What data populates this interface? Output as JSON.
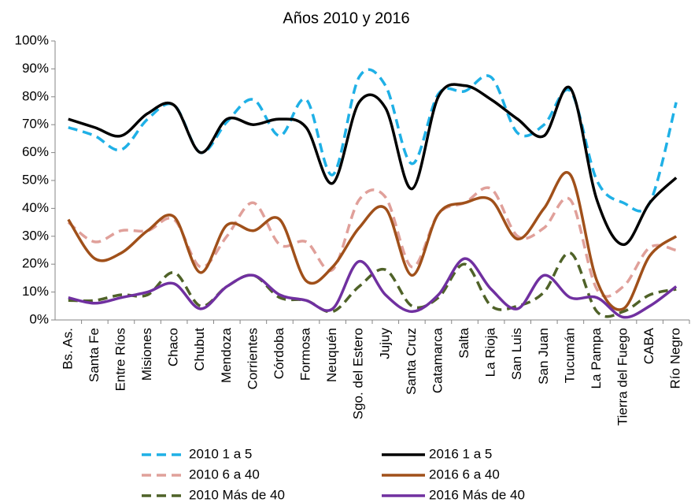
{
  "chart_data": {
    "type": "line",
    "title": "Años 2010 y 2016",
    "categories": [
      "Bs. As.",
      "Santa Fe",
      "Entre Ríos",
      "Misiones",
      "Chaco",
      "Chubut",
      "Mendoza",
      "Corrientes",
      "Córdoba",
      "Formosa",
      "Neuquén",
      "Sgo. del Estero",
      "Jujuy",
      "Santa Cruz",
      "Catamarca",
      "Salta",
      "La Rioja",
      "San Luis",
      "San Juan",
      "Tucumán",
      "La Pampa",
      "Tierra del Fuego",
      "CABA",
      "Río Negro"
    ],
    "series": [
      {
        "name": "2010 1 a 5",
        "color": "#1fb0e6",
        "style": "dashed",
        "values": [
          69,
          66,
          61,
          72,
          77,
          60,
          71,
          79,
          66,
          79,
          52,
          87,
          84,
          56,
          81,
          82,
          87,
          67,
          70,
          82,
          50,
          42,
          42,
          78
        ]
      },
      {
        "name": "2016 1 a 5",
        "color": "#000000",
        "style": "solid",
        "values": [
          72,
          69,
          66,
          74,
          77,
          60,
          72,
          70,
          72,
          69,
          49,
          78,
          76,
          47,
          80,
          84,
          79,
          72,
          66,
          83,
          43,
          27,
          42,
          51
        ]
      },
      {
        "name": "2010 6 a 40",
        "color": "#e0a09a",
        "style": "dashed",
        "values": [
          35,
          28,
          32,
          32,
          36,
          19,
          30,
          42,
          27,
          28,
          18,
          43,
          44,
          19,
          38,
          42,
          47,
          30,
          33,
          43,
          11,
          12,
          26,
          25
        ]
      },
      {
        "name": "2016 6 a 40",
        "color": "#a0501a",
        "style": "solid",
        "values": [
          36,
          22,
          24,
          32,
          37,
          17,
          34,
          32,
          36,
          14,
          19,
          33,
          40,
          16,
          38,
          42,
          43,
          29,
          40,
          52,
          14,
          4,
          23,
          30
        ]
      },
      {
        "name": "2010 Más de 40",
        "color": "#4f6228",
        "style": "dashed",
        "values": [
          7,
          7,
          9,
          9,
          17,
          5,
          12,
          16,
          8,
          7,
          3,
          12,
          18,
          5,
          8,
          20,
          5,
          5,
          10,
          24,
          3,
          3,
          9,
          11
        ]
      },
      {
        "name": "2016 Más de 40",
        "color": "#7030a0",
        "style": "solid",
        "values": [
          8,
          6,
          8,
          10,
          13,
          4,
          12,
          16,
          9,
          7,
          4,
          21,
          9,
          3,
          9,
          22,
          11,
          4,
          16,
          8,
          8,
          1,
          5,
          12
        ]
      }
    ],
    "ylim": [
      0,
      100
    ],
    "yticks": [
      {
        "value": 0,
        "label": "0%"
      },
      {
        "value": 10,
        "label": "10%"
      },
      {
        "value": 20,
        "label": "20%"
      },
      {
        "value": 30,
        "label": "30%"
      },
      {
        "value": 40,
        "label": "40%"
      },
      {
        "value": 50,
        "label": "50%"
      },
      {
        "value": 60,
        "label": "60%"
      },
      {
        "value": 70,
        "label": "70%"
      },
      {
        "value": 80,
        "label": "80%"
      },
      {
        "value": 90,
        "label": "90%"
      },
      {
        "value": 100,
        "label": "100%"
      }
    ],
    "smooth": true
  }
}
